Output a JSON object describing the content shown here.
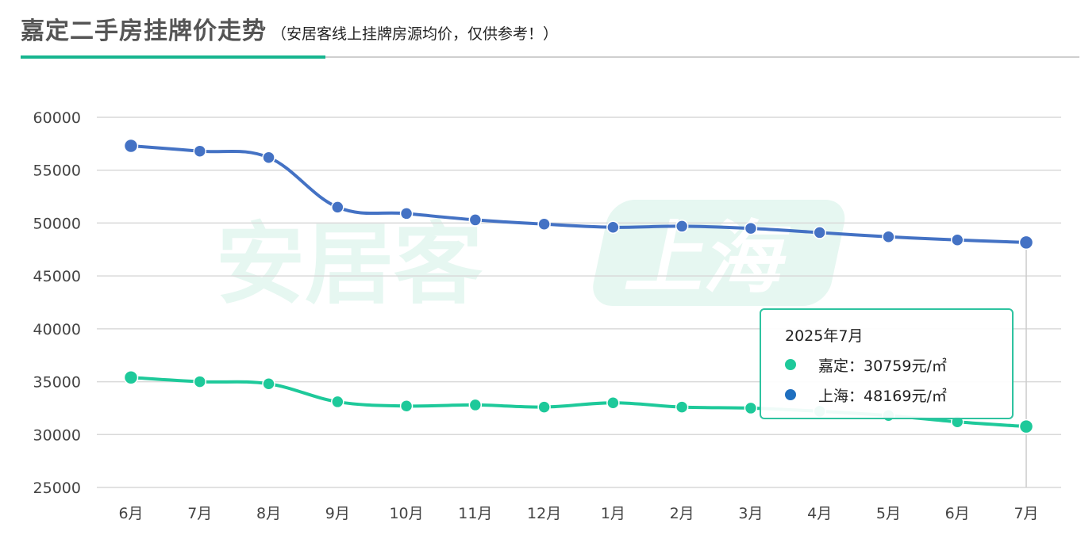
{
  "header": {
    "title": "嘉定二手房挂牌价走势",
    "subtitle": "（安居客线上挂牌房源均价，仅供参考！）"
  },
  "watermark": {
    "brand": "安居客",
    "city": "上海"
  },
  "colors": {
    "jiading": "#1ec99a",
    "shanghai": "#4472c4",
    "accent": "#17b58f",
    "grid": "#d9d9d9"
  },
  "chart_data": {
    "type": "line",
    "x": [
      "6月",
      "7月",
      "8月",
      "9月",
      "10月",
      "11月",
      "12月",
      "1月",
      "2月",
      "3月",
      "4月",
      "5月",
      "6月",
      "7月"
    ],
    "ylim": [
      25000,
      60000
    ],
    "yticks": [
      25000,
      30000,
      35000,
      40000,
      45000,
      50000,
      55000,
      60000
    ],
    "grid": true,
    "legend": "none",
    "series": [
      {
        "name": "上海",
        "color": "#4472c4",
        "values": [
          57300,
          56800,
          56200,
          51500,
          50900,
          50300,
          49900,
          49600,
          49700,
          49500,
          49100,
          48700,
          48400,
          48169
        ]
      },
      {
        "name": "嘉定",
        "color": "#1ec99a",
        "values": [
          35400,
          35000,
          34800,
          33100,
          32700,
          32800,
          32600,
          33000,
          32600,
          32500,
          32200,
          31800,
          31200,
          30759
        ]
      }
    ],
    "tooltip": {
      "title": "2025年7月",
      "rows": [
        {
          "name": "嘉定",
          "value": "30759元/㎡",
          "color": "#1ec99a"
        },
        {
          "name": "上海",
          "value": "48169元/㎡",
          "color": "#1f6fbf"
        }
      ]
    }
  }
}
